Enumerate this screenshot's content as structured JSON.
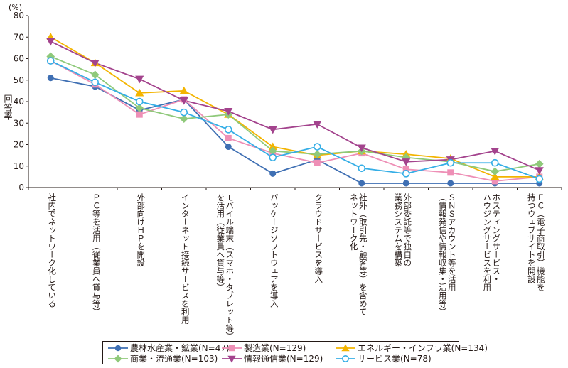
{
  "chart_data": {
    "type": "line",
    "unit": "(%)",
    "ylabel": "回答率",
    "ylim": [
      0,
      80
    ],
    "yticks": [
      0,
      10,
      20,
      30,
      40,
      50,
      60,
      70,
      80
    ],
    "grid": false,
    "legend_position": "bottom",
    "categories": [
      "社内でネットワーク化している",
      "ＰＣ等を活用（従業員へ貸与等）",
      "外部向けＨＰを開設",
      "インターネット接続サービスを利用",
      "モバイル端末（スマホ・タブレット等）\nを活用（従業員へ貸与等）",
      "パッケージソフトウェアを導入",
      "クラウドサービスを導入",
      "社外（取引先・顧客等）を含めて\nネットワーク化",
      "外部委託等で独自の\n業務システムを構築",
      "ＳＮＳアカウント等を活用\n（情報発信や情報収集・活用等）",
      "ホスティングサービス・\nハウジングサービスを利用",
      "ＥＣ（電子商取引）機能を\n持つウェブサイトを開設"
    ],
    "series": [
      {
        "name": "農林水産業・鉱業(N=47)",
        "color": "#3f6fb3",
        "marker": "circle",
        "values": [
          51,
          47,
          36,
          41,
          19,
          6.5,
          13,
          2,
          2,
          2,
          2,
          2
        ]
      },
      {
        "name": "製造業(N=129)",
        "color": "#ee8fb6",
        "marker": "square",
        "values": [
          59,
          48,
          34,
          41,
          23,
          16,
          11.5,
          16,
          8.5,
          7,
          3,
          5
        ]
      },
      {
        "name": "エネルギー・インフラ業(N=134)",
        "color": "#f3b400",
        "marker": "triangle",
        "values": [
          70,
          58,
          44,
          45,
          34,
          19,
          15,
          17,
          15.5,
          13.5,
          5,
          5
        ]
      },
      {
        "name": "商業・流通業(N=103)",
        "color": "#8fc97a",
        "marker": "diamond",
        "values": [
          61,
          52.5,
          37,
          32,
          34,
          17,
          15.5,
          17,
          14,
          12,
          7.5,
          11
        ]
      },
      {
        "name": "情報通信業(N=129)",
        "color": "#a3438d",
        "marker": "triangle-down",
        "values": [
          68,
          58,
          50.5,
          40.5,
          35.5,
          27,
          29.5,
          18.5,
          12,
          13,
          17,
          8
        ]
      },
      {
        "name": "サービス業(N=78)",
        "color": "#35aee6",
        "marker": "open-circle",
        "values": [
          59,
          49,
          40,
          35,
          27,
          14,
          19,
          9,
          6.5,
          11.5,
          11.5,
          4
        ]
      }
    ]
  }
}
